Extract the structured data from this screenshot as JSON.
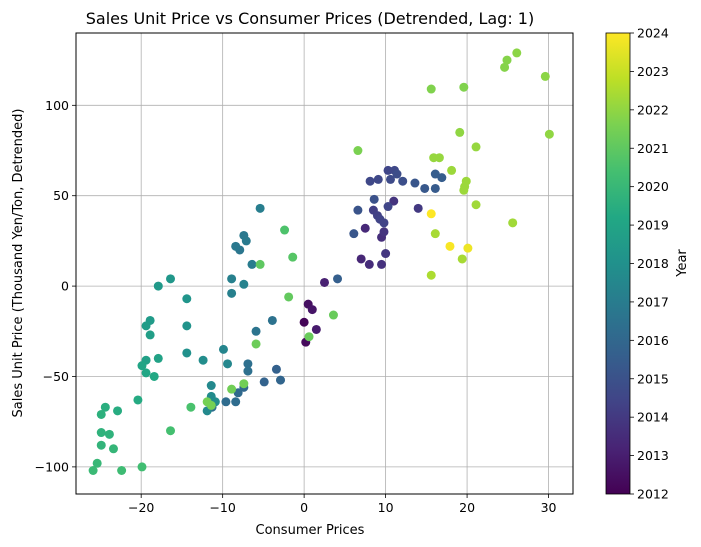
{
  "chart_data": {
    "type": "scatter",
    "title": "Sales Unit Price vs Consumer Prices (Detrended, Lag: 1)",
    "xlabel": "Consumer Prices",
    "ylabel": "Sales Unit Price (Thousand Yen/Ton, Detrended)",
    "xlim": [
      -28,
      33
    ],
    "ylim": [
      -115,
      140
    ],
    "xticks": [
      -20,
      -10,
      0,
      10,
      20,
      30
    ],
    "yticks": [
      -100,
      -50,
      0,
      50,
      100
    ],
    "grid": true,
    "colorbar": {
      "label": "Year",
      "colormap": "viridis",
      "range": [
        2012,
        2024
      ],
      "ticks": [
        2012,
        2013,
        2014,
        2015,
        2016,
        2017,
        2018,
        2019,
        2020,
        2021,
        2022,
        2023,
        2024
      ]
    },
    "points": [
      {
        "x": 0,
        "y": -20,
        "year": 2012.1
      },
      {
        "x": 0.2,
        "y": -31,
        "year": 2012.3
      },
      {
        "x": 0.5,
        "y": -10,
        "year": 2012.5
      },
      {
        "x": 1,
        "y": -13,
        "year": 2012.7
      },
      {
        "x": 1.5,
        "y": -24,
        "year": 2012.9
      },
      {
        "x": 2.5,
        "y": 2,
        "year": 2013.1
      },
      {
        "x": 7,
        "y": 15,
        "year": 2013.3
      },
      {
        "x": 8,
        "y": 12,
        "year": 2013.5
      },
      {
        "x": 9.5,
        "y": 12,
        "year": 2013.7
      },
      {
        "x": 10,
        "y": 18,
        "year": 2013.9
      },
      {
        "x": 7.5,
        "y": 32,
        "year": 2013.4
      },
      {
        "x": 9.5,
        "y": 27,
        "year": 2013.6
      },
      {
        "x": 9.8,
        "y": 30,
        "year": 2013.8
      },
      {
        "x": 11,
        "y": 47,
        "year": 2013.8
      },
      {
        "x": 14,
        "y": 43,
        "year": 2014.0
      },
      {
        "x": 8.5,
        "y": 42,
        "year": 2014.2
      },
      {
        "x": 9,
        "y": 39,
        "year": 2014.3
      },
      {
        "x": 9.3,
        "y": 37,
        "year": 2014.4
      },
      {
        "x": 9.8,
        "y": 35,
        "year": 2014.4
      },
      {
        "x": 10.3,
        "y": 44,
        "year": 2014.5
      },
      {
        "x": 8.1,
        "y": 58,
        "year": 2014.6
      },
      {
        "x": 9.1,
        "y": 59,
        "year": 2014.6
      },
      {
        "x": 10.6,
        "y": 59,
        "year": 2014.7
      },
      {
        "x": 10.3,
        "y": 64,
        "year": 2014.5
      },
      {
        "x": 11.1,
        "y": 64,
        "year": 2014.6
      },
      {
        "x": 11.4,
        "y": 62,
        "year": 2014.8
      },
      {
        "x": 12.1,
        "y": 58,
        "year": 2014.9
      },
      {
        "x": 8.6,
        "y": 48,
        "year": 2015.0
      },
      {
        "x": 6.6,
        "y": 42,
        "year": 2015.1
      },
      {
        "x": 6.1,
        "y": 29,
        "year": 2015.2
      },
      {
        "x": 13.6,
        "y": 57,
        "year": 2015.2
      },
      {
        "x": 14.8,
        "y": 54,
        "year": 2015.3
      },
      {
        "x": 16.1,
        "y": 54,
        "year": 2015.4
      },
      {
        "x": 16.1,
        "y": 62,
        "year": 2015.5
      },
      {
        "x": 16.9,
        "y": 60,
        "year": 2015.5
      },
      {
        "x": 4.1,
        "y": 4,
        "year": 2015.6
      },
      {
        "x": -3.4,
        "y": -46,
        "year": 2015.7
      },
      {
        "x": -4.9,
        "y": -53,
        "year": 2015.8
      },
      {
        "x": -2.9,
        "y": -52,
        "year": 2015.9
      },
      {
        "x": -7.4,
        "y": -56,
        "year": 2016.0
      },
      {
        "x": -8.1,
        "y": -59,
        "year": 2016.1
      },
      {
        "x": -9.6,
        "y": -64,
        "year": 2016.2
      },
      {
        "x": -8.4,
        "y": -64,
        "year": 2016.2
      },
      {
        "x": -11.3,
        "y": -67,
        "year": 2016.3
      },
      {
        "x": -6.9,
        "y": -43,
        "year": 2016.4
      },
      {
        "x": -6.9,
        "y": -47,
        "year": 2016.4
      },
      {
        "x": -3.9,
        "y": -19,
        "year": 2016.5
      },
      {
        "x": -5.9,
        "y": -25,
        "year": 2016.6
      },
      {
        "x": -7.9,
        "y": 20,
        "year": 2016.7
      },
      {
        "x": -7.4,
        "y": 28,
        "year": 2016.8
      },
      {
        "x": -8.4,
        "y": 22,
        "year": 2016.8
      },
      {
        "x": -7.1,
        "y": 25,
        "year": 2016.9
      },
      {
        "x": -6.4,
        "y": 12,
        "year": 2017.0
      },
      {
        "x": -5.4,
        "y": 43,
        "year": 2017.1
      },
      {
        "x": -8.9,
        "y": 4,
        "year": 2017.2
      },
      {
        "x": -8.9,
        "y": -4,
        "year": 2017.2
      },
      {
        "x": -7.4,
        "y": 1,
        "year": 2017.3
      },
      {
        "x": -9.9,
        "y": -35,
        "year": 2017.4
      },
      {
        "x": -9.4,
        "y": -43,
        "year": 2017.5
      },
      {
        "x": -11.4,
        "y": -55,
        "year": 2017.6
      },
      {
        "x": -11.9,
        "y": -69,
        "year": 2017.6
      },
      {
        "x": -11.4,
        "y": -61,
        "year": 2017.7
      },
      {
        "x": -12.4,
        "y": -41,
        "year": 2017.8
      },
      {
        "x": -10.9,
        "y": -64,
        "year": 2017.8
      },
      {
        "x": -14.4,
        "y": -37,
        "year": 2018.0
      },
      {
        "x": -14.4,
        "y": -22,
        "year": 2018.1
      },
      {
        "x": -14.4,
        "y": -7,
        "year": 2018.2
      },
      {
        "x": -16.4,
        "y": 4,
        "year": 2018.3
      },
      {
        "x": -17.9,
        "y": 0,
        "year": 2018.4
      },
      {
        "x": -18.9,
        "y": -19,
        "year": 2018.5
      },
      {
        "x": -19.4,
        "y": -22,
        "year": 2018.6
      },
      {
        "x": -18.9,
        "y": -27,
        "year": 2018.7
      },
      {
        "x": -19.4,
        "y": -41,
        "year": 2018.8
      },
      {
        "x": -17.9,
        "y": -40,
        "year": 2018.9
      },
      {
        "x": -19.9,
        "y": -44,
        "year": 2019.0
      },
      {
        "x": -19.4,
        "y": -48,
        "year": 2019.1
      },
      {
        "x": -18.4,
        "y": -50,
        "year": 2019.2
      },
      {
        "x": -20.4,
        "y": -63,
        "year": 2019.3
      },
      {
        "x": -22.9,
        "y": -69,
        "year": 2019.4
      },
      {
        "x": -24.4,
        "y": -67,
        "year": 2019.5
      },
      {
        "x": -24.9,
        "y": -71,
        "year": 2019.6
      },
      {
        "x": -24.9,
        "y": -81,
        "year": 2019.7
      },
      {
        "x": -23.9,
        "y": -82,
        "year": 2019.7
      },
      {
        "x": -24.9,
        "y": -88,
        "year": 2019.8
      },
      {
        "x": -23.4,
        "y": -90,
        "year": 2019.9
      },
      {
        "x": -25.4,
        "y": -98,
        "year": 2020.0
      },
      {
        "x": -25.9,
        "y": -102,
        "year": 2020.1
      },
      {
        "x": -22.4,
        "y": -102,
        "year": 2020.2
      },
      {
        "x": -19.9,
        "y": -100,
        "year": 2020.3
      },
      {
        "x": -16.4,
        "y": -80,
        "year": 2020.4
      },
      {
        "x": -13.9,
        "y": -67,
        "year": 2020.5
      },
      {
        "x": -2.4,
        "y": 31,
        "year": 2020.6
      },
      {
        "x": -1.4,
        "y": 16,
        "year": 2020.8
      },
      {
        "x": -5.4,
        "y": 12,
        "year": 2021.0
      },
      {
        "x": -1.9,
        "y": -6,
        "year": 2021.1
      },
      {
        "x": 3.6,
        "y": -16,
        "year": 2021.2
      },
      {
        "x": 0.6,
        "y": -28,
        "year": 2021.2
      },
      {
        "x": -5.9,
        "y": -32,
        "year": 2021.3
      },
      {
        "x": -8.9,
        "y": -57,
        "year": 2021.4
      },
      {
        "x": -7.4,
        "y": -54,
        "year": 2021.4
      },
      {
        "x": -11.9,
        "y": -64,
        "year": 2021.5
      },
      {
        "x": -11.4,
        "y": -66,
        "year": 2021.5
      },
      {
        "x": 6.6,
        "y": 75,
        "year": 2021.6
      },
      {
        "x": 15.6,
        "y": 109,
        "year": 2021.7
      },
      {
        "x": 19.6,
        "y": 110,
        "year": 2021.7
      },
      {
        "x": 24.6,
        "y": 121,
        "year": 2021.8
      },
      {
        "x": 24.9,
        "y": 125,
        "year": 2021.8
      },
      {
        "x": 26.1,
        "y": 129,
        "year": 2021.9
      },
      {
        "x": 29.6,
        "y": 116,
        "year": 2021.9
      },
      {
        "x": 30.1,
        "y": 84,
        "year": 2022.0
      },
      {
        "x": 19.1,
        "y": 85,
        "year": 2022.0
      },
      {
        "x": 21.1,
        "y": 77,
        "year": 2022.1
      },
      {
        "x": 15.9,
        "y": 71,
        "year": 2022.1
      },
      {
        "x": 16.6,
        "y": 71,
        "year": 2022.1
      },
      {
        "x": 18.1,
        "y": 64,
        "year": 2022.2
      },
      {
        "x": 19.9,
        "y": 58,
        "year": 2022.2
      },
      {
        "x": 19.6,
        "y": 53,
        "year": 2022.2
      },
      {
        "x": 19.7,
        "y": 55,
        "year": 2022.2
      },
      {
        "x": 21.1,
        "y": 45,
        "year": 2022.3
      },
      {
        "x": 25.6,
        "y": 35,
        "year": 2022.3
      },
      {
        "x": 16.1,
        "y": 29,
        "year": 2022.4
      },
      {
        "x": 19.4,
        "y": 15,
        "year": 2022.4
      },
      {
        "x": 15.6,
        "y": 6,
        "year": 2022.5
      },
      {
        "x": 15.6,
        "y": 40,
        "year": 2024.0
      },
      {
        "x": 17.9,
        "y": 22,
        "year": 2023.9
      },
      {
        "x": 20.1,
        "y": 21,
        "year": 2023.7
      }
    ]
  }
}
